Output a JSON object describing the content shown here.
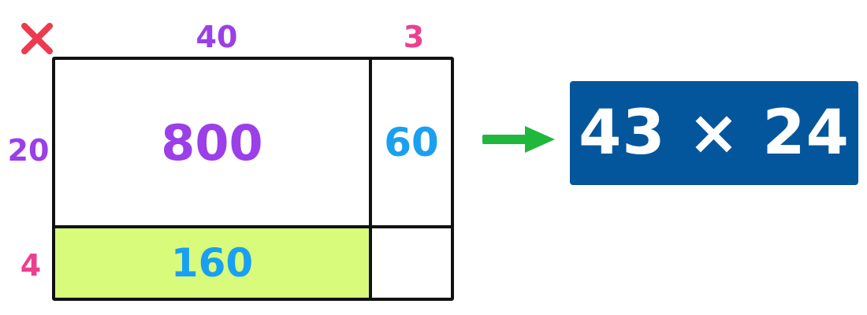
{
  "colors": {
    "purple": "#9b3fe8",
    "pink": "#ec3f8f",
    "blue": "#1aa0f0",
    "red": "#ee3a4e",
    "green": "#1fb83c",
    "highlight": "#d8fb7c",
    "result_bg": "#04569c",
    "border": "#111111"
  },
  "icons": {
    "times": "multiplication-x-icon",
    "arrow": "right-arrow-icon"
  },
  "columns": {
    "tens": "40",
    "ones": "3"
  },
  "rows": {
    "tens": "20",
    "ones": "4"
  },
  "cells": {
    "tens_by_tens": "800",
    "tens_by_ones": "60",
    "ones_by_tens": "160",
    "ones_by_ones": ""
  },
  "result": {
    "expression": "43 × 24"
  }
}
